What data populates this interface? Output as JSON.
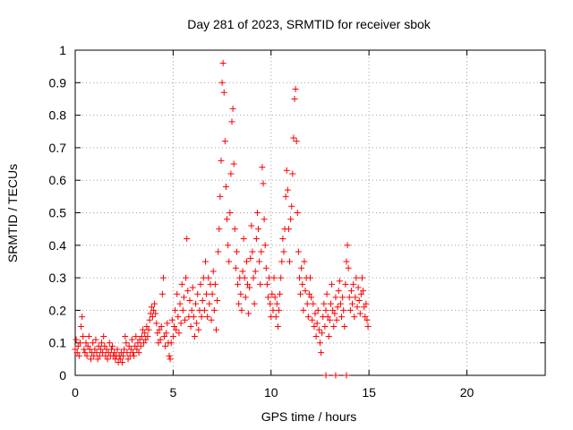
{
  "chart_data": {
    "type": "scatter",
    "title": "Day 281 of 2023, SRMTID for receiver sbok",
    "xlabel": "GPS time / hours",
    "ylabel": "SRMTID / TECUs",
    "xlim": [
      0,
      24
    ],
    "ylim": [
      0,
      1
    ],
    "xticks": [
      0,
      5,
      10,
      15,
      20
    ],
    "xtick_labels": [
      "0",
      "5",
      "10",
      "15",
      "20"
    ],
    "yticks": [
      0,
      0.1,
      0.2,
      0.3,
      0.4,
      0.5,
      0.6,
      0.7,
      0.8,
      0.9,
      1
    ],
    "ytick_labels": [
      "0",
      "0.1",
      "0.2",
      "0.3",
      "0.4",
      "0.5",
      "0.6",
      "0.7",
      "0.8",
      "0.9",
      "1"
    ],
    "grid": true,
    "marker": "+",
    "series": [
      {
        "name": "SRMTID",
        "color": "#ff0000",
        "points": [
          [
            0.0,
            0.08
          ],
          [
            0.05,
            0.11
          ],
          [
            0.1,
            0.07
          ],
          [
            0.15,
            0.09
          ],
          [
            0.2,
            0.06
          ],
          [
            0.25,
            0.1
          ],
          [
            0.3,
            0.15
          ],
          [
            0.35,
            0.18
          ],
          [
            0.4,
            0.12
          ],
          [
            0.45,
            0.08
          ],
          [
            0.5,
            0.07
          ],
          [
            0.55,
            0.1
          ],
          [
            0.6,
            0.06
          ],
          [
            0.65,
            0.09
          ],
          [
            0.7,
            0.12
          ],
          [
            0.75,
            0.08
          ],
          [
            0.8,
            0.05
          ],
          [
            0.85,
            0.07
          ],
          [
            0.9,
            0.1
          ],
          [
            0.95,
            0.06
          ],
          [
            1.0,
            0.08
          ],
          [
            1.05,
            0.11
          ],
          [
            1.1,
            0.07
          ],
          [
            1.15,
            0.05
          ],
          [
            1.2,
            0.09
          ],
          [
            1.25,
            0.06
          ],
          [
            1.3,
            0.08
          ],
          [
            1.35,
            0.1
          ],
          [
            1.4,
            0.07
          ],
          [
            1.45,
            0.12
          ],
          [
            1.5,
            0.09
          ],
          [
            1.55,
            0.06
          ],
          [
            1.6,
            0.08
          ],
          [
            1.65,
            0.05
          ],
          [
            1.7,
            0.07
          ],
          [
            1.75,
            0.1
          ],
          [
            1.8,
            0.06
          ],
          [
            1.85,
            0.08
          ],
          [
            1.9,
            0.09
          ],
          [
            1.95,
            0.06
          ],
          [
            2.0,
            0.07
          ],
          [
            2.05,
            0.05
          ],
          [
            2.1,
            0.06
          ],
          [
            2.15,
            0.08
          ],
          [
            2.2,
            0.04
          ],
          [
            2.25,
            0.06
          ],
          [
            2.3,
            0.05
          ],
          [
            2.35,
            0.07
          ],
          [
            2.4,
            0.04
          ],
          [
            2.45,
            0.06
          ],
          [
            2.5,
            0.08
          ],
          [
            2.55,
            0.12
          ],
          [
            2.6,
            0.1
          ],
          [
            2.65,
            0.07
          ],
          [
            2.7,
            0.05
          ],
          [
            2.75,
            0.09
          ],
          [
            2.8,
            0.06
          ],
          [
            2.85,
            0.08
          ],
          [
            2.9,
            0.11
          ],
          [
            2.95,
            0.07
          ],
          [
            3.0,
            0.06
          ],
          [
            3.05,
            0.09
          ],
          [
            3.1,
            0.12
          ],
          [
            3.15,
            0.08
          ],
          [
            3.2,
            0.1
          ],
          [
            3.25,
            0.07
          ],
          [
            3.3,
            0.11
          ],
          [
            3.35,
            0.09
          ],
          [
            3.4,
            0.12
          ],
          [
            3.45,
            0.14
          ],
          [
            3.5,
            0.1
          ],
          [
            3.55,
            0.13
          ],
          [
            3.6,
            0.11
          ],
          [
            3.65,
            0.15
          ],
          [
            3.7,
            0.12
          ],
          [
            3.75,
            0.14
          ],
          [
            3.8,
            0.17
          ],
          [
            3.85,
            0.19
          ],
          [
            3.9,
            0.21
          ],
          [
            3.95,
            0.18
          ],
          [
            4.0,
            0.2
          ],
          [
            4.05,
            0.22
          ],
          [
            4.1,
            0.19
          ],
          [
            4.15,
            0.16
          ],
          [
            4.2,
            0.13
          ],
          [
            4.25,
            0.1
          ],
          [
            4.3,
            0.14
          ],
          [
            4.35,
            0.11
          ],
          [
            4.4,
            0.15
          ],
          [
            4.45,
            0.25
          ],
          [
            4.5,
            0.3
          ],
          [
            4.55,
            0.12
          ],
          [
            4.6,
            0.09
          ],
          [
            4.65,
            0.13
          ],
          [
            4.7,
            0.16
          ],
          [
            4.75,
            0.1
          ],
          [
            4.8,
            0.06
          ],
          [
            4.85,
            0.05
          ],
          [
            4.9,
            0.1
          ],
          [
            4.95,
            0.17
          ],
          [
            5.0,
            0.12
          ],
          [
            5.05,
            0.15
          ],
          [
            5.1,
            0.2
          ],
          [
            5.15,
            0.14
          ],
          [
            5.2,
            0.25
          ],
          [
            5.25,
            0.18
          ],
          [
            5.3,
            0.13
          ],
          [
            5.35,
            0.22
          ],
          [
            5.4,
            0.16
          ],
          [
            5.45,
            0.28
          ],
          [
            5.5,
            0.2
          ],
          [
            5.55,
            0.24
          ],
          [
            5.6,
            0.17
          ],
          [
            5.65,
            0.3
          ],
          [
            5.7,
            0.42
          ],
          [
            5.75,
            0.26
          ],
          [
            5.8,
            0.18
          ],
          [
            5.85,
            0.23
          ],
          [
            5.9,
            0.15
          ],
          [
            5.95,
            0.2
          ],
          [
            6.0,
            0.27
          ],
          [
            6.05,
            0.18
          ],
          [
            6.1,
            0.12
          ],
          [
            6.15,
            0.22
          ],
          [
            6.2,
            0.16
          ],
          [
            6.25,
            0.25
          ],
          [
            6.3,
            0.14
          ],
          [
            6.35,
            0.2
          ],
          [
            6.4,
            0.28
          ],
          [
            6.45,
            0.18
          ],
          [
            6.5,
            0.23
          ],
          [
            6.55,
            0.3
          ],
          [
            6.6,
            0.2
          ],
          [
            6.65,
            0.35
          ],
          [
            6.7,
            0.25
          ],
          [
            6.75,
            0.18
          ],
          [
            6.8,
            0.3
          ],
          [
            6.85,
            0.22
          ],
          [
            6.9,
            0.28
          ],
          [
            6.95,
            0.17
          ],
          [
            7.0,
            0.25
          ],
          [
            7.05,
            0.32
          ],
          [
            7.1,
            0.2
          ],
          [
            7.15,
            0.28
          ],
          [
            7.2,
            0.14
          ],
          [
            7.25,
            0.23
          ],
          [
            7.3,
            0.38
          ],
          [
            7.35,
            0.45
          ],
          [
            7.4,
            0.55
          ],
          [
            7.45,
            0.66
          ],
          [
            7.5,
            0.9
          ],
          [
            7.55,
            0.96
          ],
          [
            7.6,
            0.87
          ],
          [
            7.65,
            0.72
          ],
          [
            7.7,
            0.58
          ],
          [
            7.75,
            0.48
          ],
          [
            7.8,
            0.4
          ],
          [
            7.85,
            0.35
          ],
          [
            7.9,
            0.5
          ],
          [
            7.95,
            0.62
          ],
          [
            8.0,
            0.78
          ],
          [
            8.05,
            0.82
          ],
          [
            8.1,
            0.65
          ],
          [
            8.15,
            0.45
          ],
          [
            8.2,
            0.33
          ],
          [
            8.25,
            0.38
          ],
          [
            8.3,
            0.28
          ],
          [
            8.35,
            0.22
          ],
          [
            8.4,
            0.3
          ],
          [
            8.45,
            0.25
          ],
          [
            8.5,
            0.2
          ],
          [
            8.55,
            0.32
          ],
          [
            8.6,
            0.42
          ],
          [
            8.65,
            0.3
          ],
          [
            8.7,
            0.24
          ],
          [
            8.75,
            0.35
          ],
          [
            8.8,
            0.28
          ],
          [
            8.85,
            0.19
          ],
          [
            8.9,
            0.27
          ],
          [
            8.95,
            0.36
          ],
          [
            9.0,
            0.46
          ],
          [
            9.05,
            0.38
          ],
          [
            9.1,
            0.3
          ],
          [
            9.15,
            0.22
          ],
          [
            9.2,
            0.32
          ],
          [
            9.25,
            0.42
          ],
          [
            9.3,
            0.5
          ],
          [
            9.35,
            0.45
          ],
          [
            9.4,
            0.35
          ],
          [
            9.45,
            0.28
          ],
          [
            9.5,
            0.38
          ],
          [
            9.55,
            0.64
          ],
          [
            9.6,
            0.59
          ],
          [
            9.65,
            0.48
          ],
          [
            9.7,
            0.4
          ],
          [
            9.75,
            0.33
          ],
          [
            9.8,
            0.28
          ],
          [
            9.85,
            0.24
          ],
          [
            9.9,
            0.3
          ],
          [
            9.95,
            0.22
          ],
          [
            10.0,
            0.18
          ],
          [
            10.05,
            0.25
          ],
          [
            10.1,
            0.2
          ],
          [
            10.15,
            0.3
          ],
          [
            10.2,
            0.24
          ],
          [
            10.25,
            0.18
          ],
          [
            10.3,
            0.22
          ],
          [
            10.35,
            0.15
          ],
          [
            10.4,
            0.2
          ],
          [
            10.45,
            0.25
          ],
          [
            10.5,
            0.3
          ],
          [
            10.55,
            0.35
          ],
          [
            10.6,
            0.42
          ],
          [
            10.65,
            0.38
          ],
          [
            10.7,
            0.45
          ],
          [
            10.75,
            0.55
          ],
          [
            10.8,
            0.63
          ],
          [
            10.85,
            0.57
          ],
          [
            10.9,
            0.45
          ],
          [
            10.95,
            0.35
          ],
          [
            11.0,
            0.48
          ],
          [
            11.05,
            0.52
          ],
          [
            11.1,
            0.62
          ],
          [
            11.15,
            0.73
          ],
          [
            11.2,
            0.85
          ],
          [
            11.25,
            0.88
          ],
          [
            11.3,
            0.72
          ],
          [
            11.35,
            0.5
          ],
          [
            11.4,
            0.38
          ],
          [
            11.45,
            0.3
          ],
          [
            11.5,
            0.25
          ],
          [
            11.55,
            0.33
          ],
          [
            11.6,
            0.28
          ],
          [
            11.65,
            0.2
          ],
          [
            11.7,
            0.35
          ],
          [
            11.75,
            0.26
          ],
          [
            11.8,
            0.3
          ],
          [
            11.85,
            0.22
          ],
          [
            11.9,
            0.18
          ],
          [
            11.95,
            0.25
          ],
          [
            12.0,
            0.3
          ],
          [
            12.05,
            0.24
          ],
          [
            12.1,
            0.17
          ],
          [
            12.15,
            0.22
          ],
          [
            12.2,
            0.15
          ],
          [
            12.25,
            0.19
          ],
          [
            12.3,
            0.12
          ],
          [
            12.35,
            0.16
          ],
          [
            12.4,
            0.2
          ],
          [
            12.45,
            0.14
          ],
          [
            12.5,
            0.1
          ],
          [
            12.55,
            0.07
          ],
          [
            12.6,
            0.13
          ],
          [
            12.65,
            0.18
          ],
          [
            12.7,
            0.22
          ],
          [
            12.75,
            0.15
          ],
          [
            12.8,
            0.2
          ],
          [
            12.85,
            0.25
          ],
          [
            12.9,
            0.18
          ],
          [
            12.95,
            0.12
          ],
          [
            13.0,
            0.17
          ],
          [
            13.05,
            0.22
          ],
          [
            13.1,
            0.28
          ],
          [
            13.15,
            0.2
          ],
          [
            13.2,
            0.15
          ],
          [
            13.25,
            0.19
          ],
          [
            13.3,
            0.24
          ],
          [
            13.35,
            0.17
          ],
          [
            13.4,
            0.21
          ],
          [
            13.45,
            0.26
          ],
          [
            13.5,
            0.29
          ],
          [
            13.55,
            0.22
          ],
          [
            13.6,
            0.18
          ],
          [
            13.65,
            0.24
          ],
          [
            13.7,
            0.2
          ],
          [
            13.75,
            0.15
          ],
          [
            13.8,
            0.28
          ],
          [
            13.85,
            0.35
          ],
          [
            13.9,
            0.4
          ],
          [
            13.95,
            0.33
          ],
          [
            14.0,
            0.24
          ],
          [
            14.05,
            0.2
          ],
          [
            14.1,
            0.26
          ],
          [
            14.15,
            0.22
          ],
          [
            14.2,
            0.28
          ],
          [
            14.25,
            0.18
          ],
          [
            14.3,
            0.24
          ],
          [
            14.35,
            0.3
          ],
          [
            14.4,
            0.21
          ],
          [
            14.45,
            0.27
          ],
          [
            14.5,
            0.23
          ],
          [
            14.55,
            0.19
          ],
          [
            14.6,
            0.25
          ],
          [
            14.65,
            0.3
          ],
          [
            14.7,
            0.26
          ],
          [
            14.75,
            0.21
          ],
          [
            14.8,
            0.18
          ],
          [
            14.85,
            0.22
          ],
          [
            14.9,
            0.17
          ],
          [
            14.95,
            0.15
          ],
          [
            12.8,
            0.0
          ],
          [
            13.3,
            0.0
          ],
          [
            13.85,
            0.0
          ]
        ]
      }
    ]
  }
}
